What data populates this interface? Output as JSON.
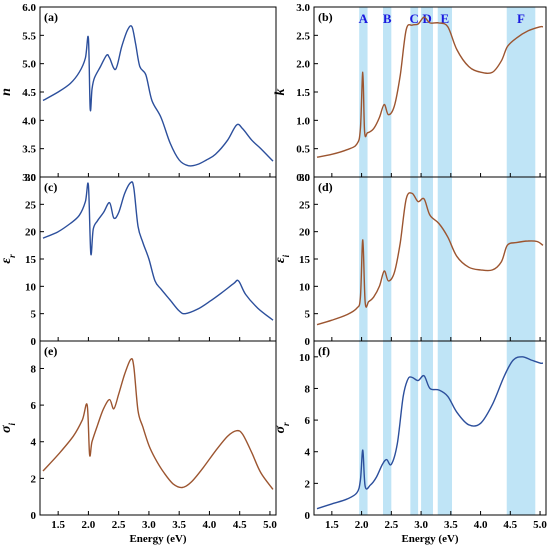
{
  "figure": {
    "colors": {
      "blue": "#2c4f9c",
      "brown": "#9c5530",
      "band": "#bfe4f6",
      "band_label": "#1a1adf"
    }
  },
  "chart_data": [
    {
      "type": "line",
      "panel": "(a)",
      "ylabel": "n",
      "xlabel": "",
      "xlim": [
        1.2,
        5.1
      ],
      "ylim": [
        3.0,
        6.0
      ],
      "xticks": [
        "1.5",
        "2.0",
        "2.5",
        "3.0",
        "3.5",
        "4.0",
        "4.5",
        "5.0"
      ],
      "yticks": [
        "3.0",
        "3.5",
        "4.0",
        "4.5",
        "5.0",
        "5.5",
        "6.0"
      ],
      "color": "blue",
      "series": [
        {
          "x": [
            1.25,
            1.5,
            1.7,
            1.85,
            1.95,
            2.0,
            2.03,
            2.06,
            2.1,
            2.2,
            2.3,
            2.35,
            2.45,
            2.55,
            2.65,
            2.72,
            2.78,
            2.85,
            2.95,
            3.05,
            3.2,
            3.35,
            3.5,
            3.65,
            3.8,
            3.95,
            4.1,
            4.3,
            4.45,
            4.55,
            4.7,
            4.85,
            5.05
          ],
          "y": [
            4.35,
            4.5,
            4.65,
            4.85,
            5.1,
            5.45,
            4.2,
            4.55,
            4.75,
            4.95,
            5.15,
            5.1,
            4.9,
            5.3,
            5.6,
            5.65,
            5.35,
            4.95,
            4.8,
            4.35,
            4.05,
            3.6,
            3.3,
            3.2,
            3.22,
            3.3,
            3.4,
            3.65,
            3.92,
            3.85,
            3.65,
            3.5,
            3.28
          ]
        }
      ]
    },
    {
      "type": "line",
      "panel": "(b)",
      "ylabel": "k",
      "xlabel": "",
      "xlim": [
        1.2,
        5.1
      ],
      "ylim": [
        0.0,
        3.0
      ],
      "xticks": [
        "1.5",
        "2.0",
        "2.5",
        "3.0",
        "3.5",
        "4.0",
        "4.5",
        "5.0"
      ],
      "yticks": [
        "0.0",
        "0.5",
        "1.0",
        "1.5",
        "2.0",
        "2.5",
        "3.0"
      ],
      "color": "brown",
      "bands": [
        {
          "label": "A",
          "x0": 1.96,
          "x1": 2.1
        },
        {
          "label": "B",
          "x0": 2.36,
          "x1": 2.5
        },
        {
          "label": "C",
          "x0": 2.82,
          "x1": 2.95
        },
        {
          "label": "D",
          "x0": 3.0,
          "x1": 3.2
        },
        {
          "label": "E",
          "x0": 3.28,
          "x1": 3.52
        },
        {
          "label": "F",
          "x0": 4.44,
          "x1": 4.92
        }
      ],
      "series": [
        {
          "x": [
            1.25,
            1.5,
            1.75,
            1.92,
            1.98,
            2.02,
            2.05,
            2.1,
            2.2,
            2.3,
            2.38,
            2.45,
            2.55,
            2.65,
            2.75,
            2.85,
            2.95,
            3.05,
            3.15,
            3.3,
            3.45,
            3.6,
            3.8,
            4.0,
            4.2,
            4.35,
            4.45,
            4.6,
            4.8,
            5.0,
            5.05
          ],
          "y": [
            0.35,
            0.4,
            0.48,
            0.58,
            0.85,
            1.85,
            0.8,
            0.78,
            0.85,
            1.05,
            1.28,
            1.1,
            1.25,
            1.8,
            2.6,
            2.68,
            2.7,
            2.82,
            2.72,
            2.72,
            2.65,
            2.25,
            1.95,
            1.85,
            1.85,
            2.05,
            2.3,
            2.45,
            2.58,
            2.65,
            2.65
          ]
        }
      ]
    },
    {
      "type": "line",
      "panel": "(c)",
      "ylabel": "ε r",
      "xlabel": "",
      "xlim": [
        1.2,
        5.1
      ],
      "ylim": [
        0,
        30
      ],
      "xticks": [
        "1.5",
        "2.0",
        "2.5",
        "3.0",
        "3.5",
        "4.0",
        "4.5",
        "5.0"
      ],
      "yticks": [
        "0",
        "5",
        "10",
        "15",
        "20",
        "25",
        "30"
      ],
      "color": "blue",
      "series": [
        {
          "x": [
            1.25,
            1.5,
            1.7,
            1.85,
            1.95,
            2.0,
            2.04,
            2.08,
            2.15,
            2.25,
            2.35,
            2.42,
            2.5,
            2.6,
            2.7,
            2.75,
            2.82,
            2.9,
            3.0,
            3.1,
            3.2,
            3.35,
            3.5,
            3.6,
            3.8,
            4.0,
            4.2,
            4.4,
            4.48,
            4.6,
            4.8,
            5.05
          ],
          "y": [
            18.8,
            20.0,
            21.5,
            23.0,
            25.5,
            28.5,
            16.0,
            20.5,
            22.0,
            23.5,
            25.3,
            22.5,
            23.5,
            27.0,
            29.0,
            28.0,
            21.0,
            18.0,
            15.0,
            11.0,
            9.5,
            7.5,
            5.5,
            5.0,
            5.8,
            7.2,
            8.8,
            10.5,
            11.0,
            8.5,
            6.0,
            3.8
          ]
        }
      ]
    },
    {
      "type": "line",
      "panel": "(d)",
      "ylabel": "ε i",
      "xlabel": "",
      "xlim": [
        1.2,
        5.1
      ],
      "ylim": [
        0,
        30
      ],
      "xticks": [
        "1.5",
        "2.0",
        "2.5",
        "3.0",
        "3.5",
        "4.0",
        "4.5",
        "5.0"
      ],
      "yticks": [
        "0",
        "5",
        "10",
        "15",
        "20",
        "25",
        "30"
      ],
      "color": "brown",
      "bands": [
        {
          "label": "",
          "x0": 1.96,
          "x1": 2.1
        },
        {
          "label": "",
          "x0": 2.36,
          "x1": 2.5
        },
        {
          "label": "",
          "x0": 2.82,
          "x1": 2.95
        },
        {
          "label": "",
          "x0": 3.0,
          "x1": 3.2
        },
        {
          "label": "",
          "x0": 3.28,
          "x1": 3.52
        },
        {
          "label": "",
          "x0": 4.44,
          "x1": 4.92
        }
      ],
      "series": [
        {
          "x": [
            1.25,
            1.5,
            1.75,
            1.92,
            1.98,
            2.02,
            2.06,
            2.12,
            2.2,
            2.3,
            2.38,
            2.45,
            2.55,
            2.65,
            2.75,
            2.85,
            2.95,
            3.05,
            3.15,
            3.3,
            3.45,
            3.6,
            3.8,
            4.0,
            4.2,
            4.35,
            4.45,
            4.6,
            4.8,
            4.95,
            5.05
          ],
          "y": [
            3.0,
            3.8,
            4.8,
            6.0,
            8.0,
            18.5,
            7.0,
            7.2,
            8.0,
            10.0,
            12.8,
            11.0,
            12.5,
            18.0,
            26.0,
            27.0,
            25.5,
            26.0,
            23.0,
            21.5,
            19.0,
            15.5,
            13.5,
            13.0,
            13.0,
            14.5,
            17.5,
            18.0,
            18.3,
            18.2,
            17.5
          ]
        }
      ]
    },
    {
      "type": "line",
      "panel": "(e)",
      "ylabel": "σ i",
      "xlabel": "Energy (eV)",
      "xlim": [
        1.2,
        5.1
      ],
      "ylim": [
        0,
        9.5
      ],
      "xticks": [
        "1.5",
        "2.0",
        "2.5",
        "3.0",
        "3.5",
        "4.0",
        "4.5",
        "5.0"
      ],
      "yticks": [
        "0",
        "2",
        "4",
        "6",
        "8"
      ],
      "color": "brown",
      "series": [
        {
          "x": [
            1.25,
            1.5,
            1.75,
            1.9,
            1.98,
            2.02,
            2.06,
            2.15,
            2.25,
            2.35,
            2.42,
            2.5,
            2.6,
            2.7,
            2.75,
            2.82,
            2.9,
            3.0,
            3.1,
            3.25,
            3.4,
            3.55,
            3.7,
            3.9,
            4.1,
            4.3,
            4.45,
            4.55,
            4.7,
            4.85,
            5.05
          ],
          "y": [
            2.4,
            3.3,
            4.3,
            5.2,
            6.0,
            3.3,
            4.0,
            4.9,
            5.8,
            6.3,
            5.8,
            6.6,
            7.7,
            8.5,
            8.1,
            5.7,
            4.8,
            3.8,
            3.1,
            2.3,
            1.7,
            1.5,
            1.8,
            2.6,
            3.5,
            4.3,
            4.6,
            4.4,
            3.4,
            2.3,
            1.4
          ]
        }
      ]
    },
    {
      "type": "line",
      "panel": "(f)",
      "ylabel": "σ r",
      "xlabel": "Energy (eV)",
      "xlim": [
        1.2,
        5.1
      ],
      "ylim": [
        0,
        11
      ],
      "xticks": [
        "1.5",
        "2.0",
        "2.5",
        "3.0",
        "3.5",
        "4.0",
        "4.5",
        "5.0"
      ],
      "yticks": [
        "0",
        "2",
        "4",
        "6",
        "8",
        "10"
      ],
      "color": "blue",
      "bands": [
        {
          "label": "",
          "x0": 1.96,
          "x1": 2.1
        },
        {
          "label": "",
          "x0": 2.36,
          "x1": 2.5
        },
        {
          "label": "",
          "x0": 2.82,
          "x1": 2.95
        },
        {
          "label": "",
          "x0": 3.0,
          "x1": 3.2
        },
        {
          "label": "",
          "x0": 3.28,
          "x1": 3.52
        },
        {
          "label": "",
          "x0": 4.44,
          "x1": 4.92
        }
      ],
      "series": [
        {
          "x": [
            1.25,
            1.5,
            1.75,
            1.92,
            1.98,
            2.02,
            2.06,
            2.15,
            2.25,
            2.35,
            2.42,
            2.5,
            2.6,
            2.7,
            2.78,
            2.85,
            2.95,
            3.05,
            3.15,
            3.3,
            3.45,
            3.6,
            3.8,
            4.0,
            4.2,
            4.4,
            4.55,
            4.7,
            4.85,
            5.0,
            5.05
          ],
          "y": [
            0.4,
            0.7,
            1.0,
            1.4,
            2.2,
            4.1,
            1.8,
            1.9,
            2.4,
            3.2,
            3.5,
            3.2,
            4.5,
            7.5,
            8.6,
            8.7,
            8.5,
            8.8,
            8.0,
            7.9,
            7.5,
            6.5,
            5.7,
            5.8,
            7.0,
            8.8,
            9.8,
            10.0,
            9.8,
            9.6,
            9.6
          ]
        }
      ]
    }
  ]
}
